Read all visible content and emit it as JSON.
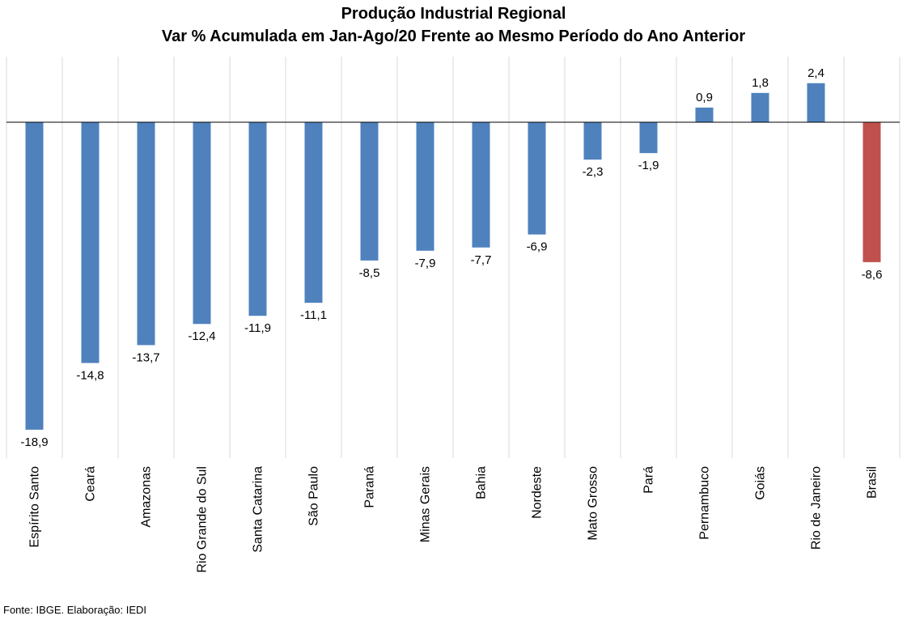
{
  "chart_data": {
    "type": "bar",
    "title": "Produção Industrial Regional",
    "subtitle": "Var % Acumulada em Jan-Ago/20 Frente ao Mesmo Período do Ano Anterior",
    "categories": [
      "Espírito Santo",
      "Ceará",
      "Amazonas",
      "Rio Grande do Sul",
      "Santa Catarina",
      "São Paulo",
      "Paraná",
      "Minas Gerais",
      "Bahia",
      "Nordeste",
      "Mato Grosso",
      "Pará",
      "Pernambuco",
      "Goiás",
      "Rio de Janeiro",
      "Brasil"
    ],
    "values": [
      -18.9,
      -14.8,
      -13.7,
      -12.4,
      -11.9,
      -11.1,
      -8.5,
      -7.9,
      -7.7,
      -6.9,
      -2.3,
      -1.9,
      0.9,
      1.8,
      2.4,
      -8.6
    ],
    "value_labels": [
      "-18,9",
      "-14,8",
      "-13,7",
      "-12,4",
      "-11,9",
      "-11,1",
      "-8,5",
      "-7,9",
      "-7,7",
      "-6,9",
      "-2,3",
      "-1,9",
      "0,9",
      "1,8",
      "2,4",
      "-8,6"
    ],
    "highlight_category": "Brasil",
    "colors": {
      "bar": "#4F81BD",
      "highlight": "#C0504D",
      "gridline": "#D9D9D9",
      "axis": "#000000"
    },
    "xlabel": "",
    "ylabel": "",
    "grid": "vertical separators between categories",
    "legend": "none"
  },
  "source": "Fonte: IBGE. Elaboração: IEDI"
}
